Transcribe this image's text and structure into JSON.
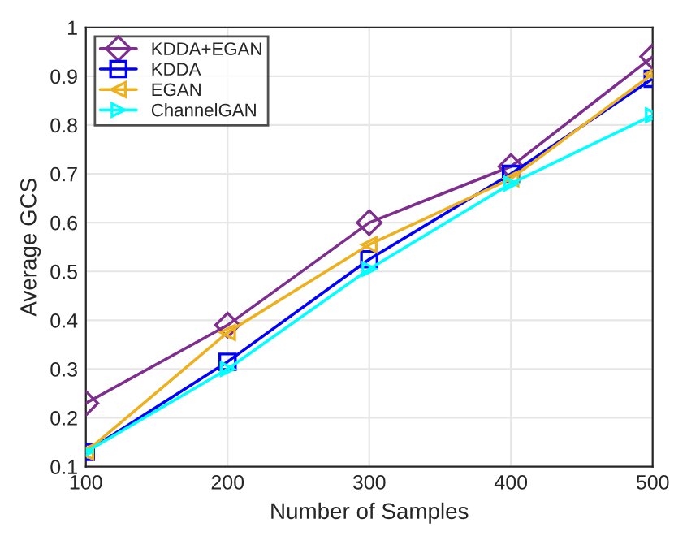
{
  "chart_data": {
    "type": "line",
    "xlabel": "Number of Samples",
    "ylabel": "Average GCS",
    "x": [
      100,
      200,
      300,
      400,
      500
    ],
    "series": [
      {
        "name": "KDDA+EGAN",
        "color": "#7e2f8e",
        "marker": "diamond",
        "values": [
          0.23,
          0.39,
          0.6,
          0.715,
          0.94
        ]
      },
      {
        "name": "KDDA",
        "color": "#0000ff",
        "marker": "square",
        "values": [
          0.13,
          0.315,
          0.525,
          0.7,
          0.895
        ]
      },
      {
        "name": "EGAN",
        "color": "#edb120",
        "marker": "triangle-left",
        "values": [
          0.13,
          0.375,
          0.555,
          0.69,
          0.905
        ]
      },
      {
        "name": "ChannelGAN",
        "color": "#00ffff",
        "marker": "triangle-right",
        "values": [
          0.13,
          0.3,
          0.505,
          0.68,
          0.82
        ]
      }
    ],
    "xlim": [
      100,
      500
    ],
    "xticks": [
      100,
      200,
      300,
      400,
      500
    ],
    "ylim": [
      0.1,
      1
    ],
    "yticks": [
      0.1,
      0.2,
      0.3,
      0.4,
      0.5,
      0.6,
      0.7,
      0.8,
      0.9,
      1
    ],
    "grid": true,
    "legend": "top left",
    "line_style": "solid"
  }
}
